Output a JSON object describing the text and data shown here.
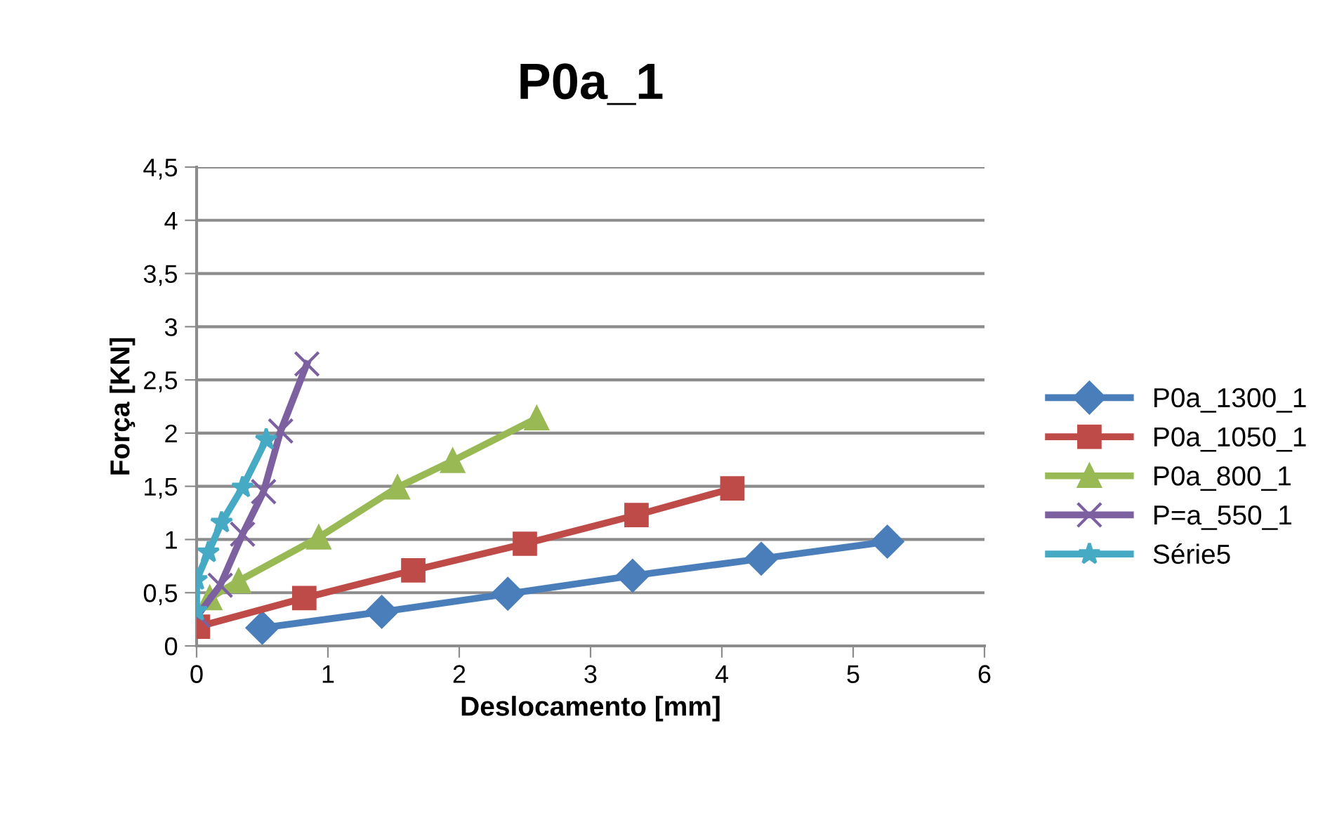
{
  "chart_data": {
    "type": "line",
    "title": "P0a_1",
    "xlabel": "Deslocamento [mm]",
    "ylabel": "Força [KN]",
    "xlim": [
      0,
      6
    ],
    "xticks": [
      0,
      1,
      2,
      3,
      4,
      5,
      6
    ],
    "ylim": [
      0,
      4.5
    ],
    "yticks": [
      0,
      {
        "value": 0.5,
        "label": "0,5"
      },
      1,
      {
        "value": 1.5,
        "label": "1,5"
      },
      2,
      {
        "value": 2.5,
        "label": "2,5"
      },
      3,
      {
        "value": 3.5,
        "label": "3,5"
      },
      4,
      {
        "value": 4.5,
        "label": "4,5"
      }
    ],
    "grid": "y",
    "legend": "right",
    "series": [
      {
        "name": "P0a_1300_1",
        "color": "#4a7ebb",
        "marker": "diamond",
        "x": [
          0.5,
          1.41,
          2.37,
          3.32,
          4.3,
          5.26
        ],
        "values": [
          0.17,
          0.32,
          0.49,
          0.66,
          0.82,
          0.98
        ]
      },
      {
        "name": "P0a_1050_1",
        "color": "#be4b48",
        "marker": "square",
        "x": [
          0.01,
          0.82,
          1.65,
          2.5,
          3.35,
          4.08
        ],
        "values": [
          0.18,
          0.45,
          0.71,
          0.96,
          1.23,
          1.48
        ]
      },
      {
        "name": "P0a_800_1",
        "color": "#98b954",
        "marker": "triangle",
        "x": [
          0.1,
          0.32,
          0.93,
          1.53,
          1.95,
          2.59
        ],
        "values": [
          0.45,
          0.61,
          1.02,
          1.49,
          1.74,
          2.14
        ]
      },
      {
        "name": "P=a_550_1",
        "color": "#7d60a0",
        "marker": "cross",
        "x": [
          0.01,
          0.18,
          0.35,
          0.51,
          0.64,
          0.84
        ],
        "values": [
          0.29,
          0.57,
          1.05,
          1.45,
          2.02,
          2.65
        ]
      },
      {
        "name": "Série5",
        "color": "#46aac5",
        "marker": "star",
        "x": [
          0.0,
          0.0,
          0.09,
          0.19,
          0.35,
          0.53
        ],
        "values": [
          0.33,
          0.62,
          0.88,
          1.16,
          1.49,
          1.94
        ]
      }
    ]
  }
}
